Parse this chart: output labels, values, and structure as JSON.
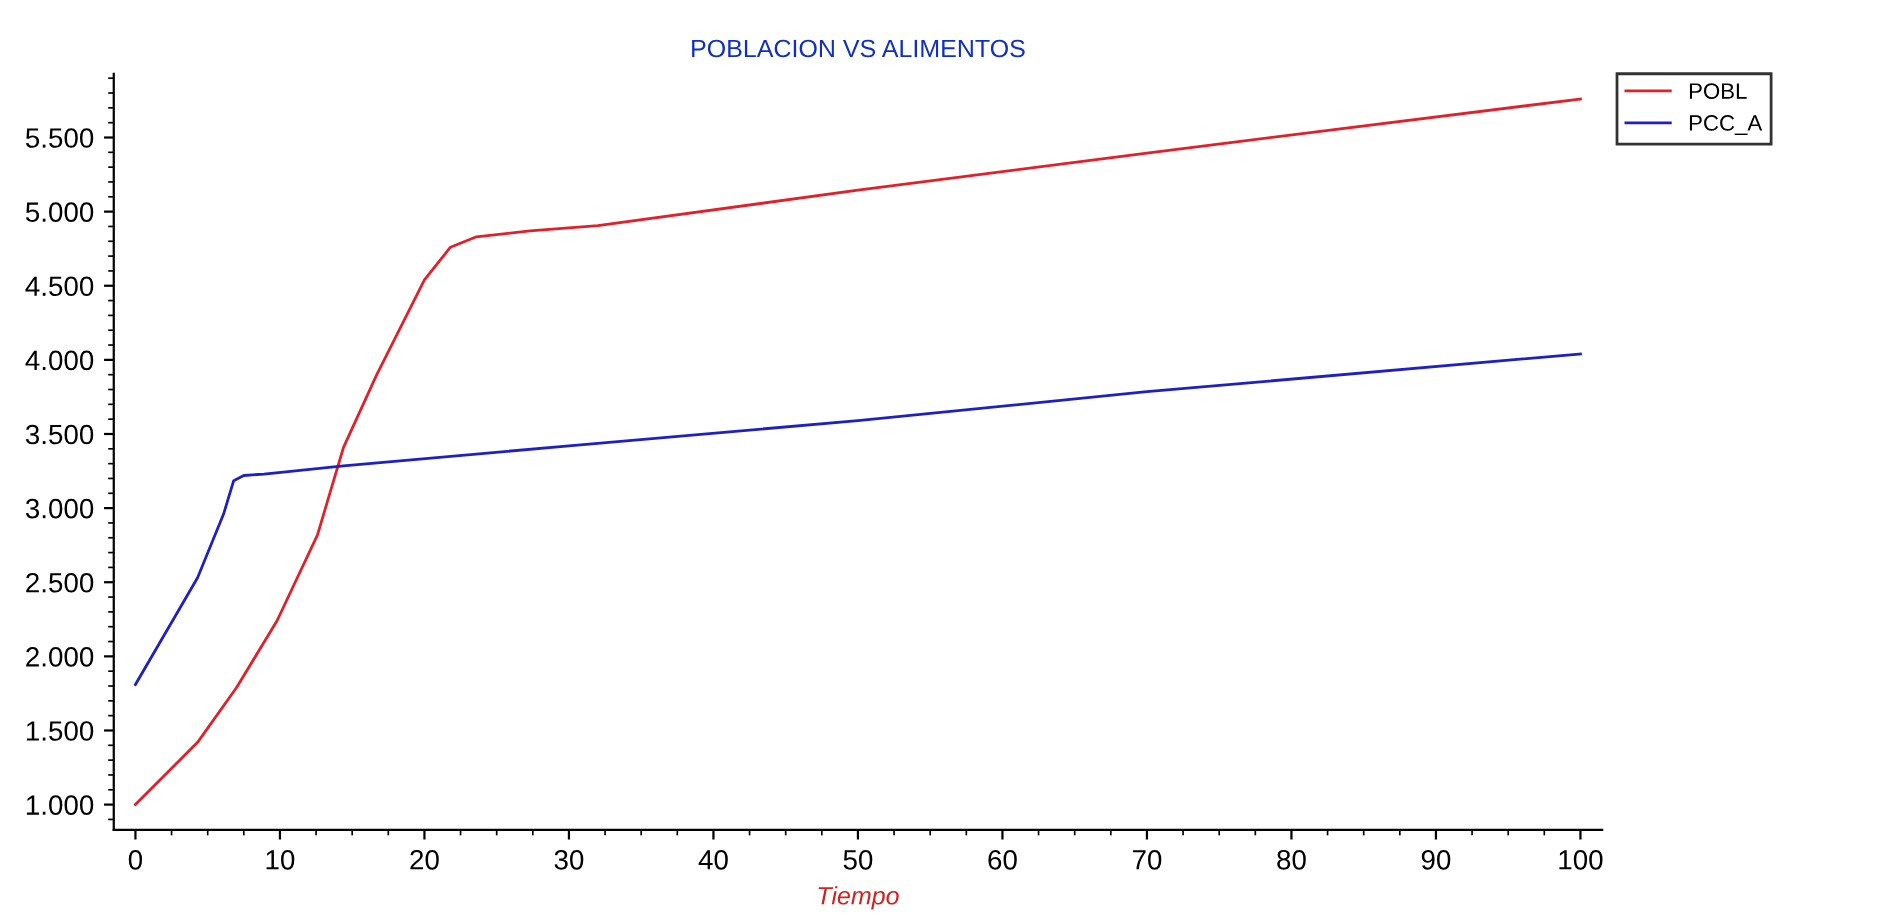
{
  "chart_data": {
    "type": "line",
    "title": "POBLACION VS ALIMENTOS",
    "xlabel": "Tiempo",
    "xlim": [
      -1.5,
      101.5
    ],
    "ylim": [
      830,
      5930
    ],
    "xticks": [
      0,
      10,
      20,
      30,
      40,
      50,
      60,
      70,
      80,
      90,
      100
    ],
    "yticks": [
      {
        "value": 1000,
        "label": "1.000"
      },
      {
        "value": 1500,
        "label": "1.500"
      },
      {
        "value": 2000,
        "label": "2.000"
      },
      {
        "value": 2500,
        "label": "2.500"
      },
      {
        "value": 3000,
        "label": "3.000"
      },
      {
        "value": 3500,
        "label": "3.500"
      },
      {
        "value": 4000,
        "label": "4.000"
      },
      {
        "value": 4500,
        "label": "4.500"
      },
      {
        "value": 5000,
        "label": "5.000"
      },
      {
        "value": 5500,
        "label": "5.500"
      }
    ],
    "grid": false,
    "legend": "top right",
    "line_style": "solid",
    "series": [
      {
        "name": "POBL",
        "color": "#e0202a",
        "x": [
          0,
          4.3,
          7,
          9.8,
          12.6,
          14.4,
          16.7,
          20,
          21.8,
          23.6,
          27.3,
          32,
          50,
          70,
          100
        ],
        "values": [
          1000,
          1420,
          1790,
          2240,
          2820,
          3410,
          3900,
          4540,
          4760,
          4830,
          4870,
          4905,
          5145,
          5395,
          5760
        ]
      },
      {
        "name": "PCC_A",
        "color": "#2020c0",
        "x": [
          0,
          4.3,
          6.1,
          6.8,
          7.5,
          8.9,
          14.4,
          30,
          50,
          70,
          100
        ],
        "values": [
          1810,
          2530,
          2960,
          3185,
          3220,
          3230,
          3285,
          3420,
          3590,
          3785,
          4040
        ]
      }
    ]
  }
}
